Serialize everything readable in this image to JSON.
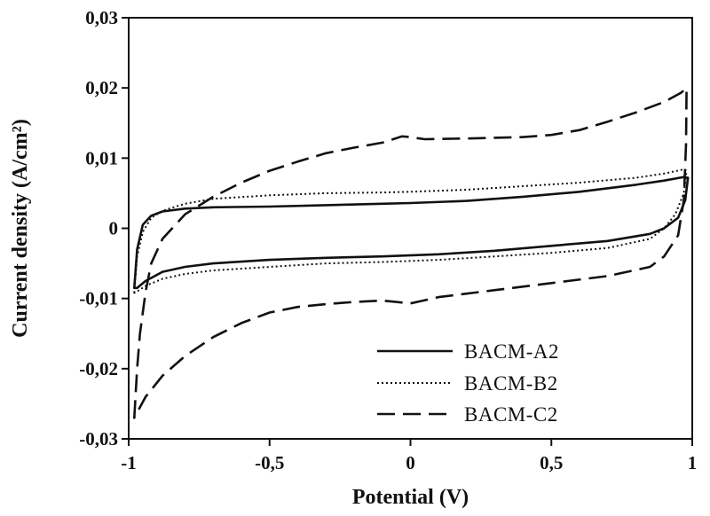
{
  "chart_data": {
    "type": "line",
    "title": "",
    "xlabel": "Potential (V)",
    "ylabel": "Current density (A/cm²)",
    "xlim": [
      -1,
      1
    ],
    "ylim": [
      -0.03,
      0.03
    ],
    "x_ticks": [
      -1,
      -0.5,
      0,
      0.5,
      1
    ],
    "x_tick_labels": [
      "-1",
      "-0,5",
      "0",
      "0,5",
      "1"
    ],
    "y_ticks": [
      -0.03,
      -0.02,
      -0.01,
      0,
      0.01,
      0.02,
      0.03
    ],
    "y_tick_labels": [
      "-0,03",
      "-0,02",
      "-0,01",
      "0",
      "0,01",
      "0,02",
      "0,03"
    ],
    "grid": false,
    "legend_position": "bottom-right",
    "series": [
      {
        "name": "BACM-A2",
        "style": "solid",
        "color": "#111111",
        "points": [
          [
            -0.98,
            -0.0085
          ],
          [
            -0.97,
            -0.003
          ],
          [
            -0.95,
            0.0005
          ],
          [
            -0.92,
            0.0018
          ],
          [
            -0.88,
            0.0024
          ],
          [
            -0.8,
            0.0028
          ],
          [
            -0.7,
            0.003
          ],
          [
            -0.5,
            0.0031
          ],
          [
            -0.3,
            0.0033
          ],
          [
            -0.1,
            0.0035
          ],
          [
            0.0,
            0.0036
          ],
          [
            0.2,
            0.0039
          ],
          [
            0.4,
            0.0045
          ],
          [
            0.6,
            0.0052
          ],
          [
            0.8,
            0.0062
          ],
          [
            0.9,
            0.0068
          ],
          [
            0.97,
            0.0073
          ],
          [
            0.985,
            0.0072
          ],
          [
            0.975,
            0.004
          ],
          [
            0.95,
            0.0015
          ],
          [
            0.9,
            0.0
          ],
          [
            0.85,
            -0.0008
          ],
          [
            0.7,
            -0.0018
          ],
          [
            0.5,
            -0.0025
          ],
          [
            0.3,
            -0.0032
          ],
          [
            0.1,
            -0.0037
          ],
          [
            -0.1,
            -0.004
          ],
          [
            -0.3,
            -0.0042
          ],
          [
            -0.5,
            -0.0045
          ],
          [
            -0.7,
            -0.005
          ],
          [
            -0.8,
            -0.0055
          ],
          [
            -0.88,
            -0.0062
          ],
          [
            -0.94,
            -0.0075
          ],
          [
            -0.97,
            -0.0085
          ],
          [
            -0.98,
            -0.0085
          ]
        ]
      },
      {
        "name": "BACM-B2",
        "style": "dotted",
        "color": "#111111",
        "points": [
          [
            -0.98,
            -0.0092
          ],
          [
            -0.97,
            -0.004
          ],
          [
            -0.95,
            -0.0005
          ],
          [
            -0.92,
            0.0015
          ],
          [
            -0.88,
            0.0025
          ],
          [
            -0.8,
            0.0035
          ],
          [
            -0.7,
            0.0042
          ],
          [
            -0.5,
            0.0047
          ],
          [
            -0.3,
            0.005
          ],
          [
            -0.1,
            0.0051
          ],
          [
            0.0,
            0.0052
          ],
          [
            0.2,
            0.0055
          ],
          [
            0.4,
            0.006
          ],
          [
            0.6,
            0.0065
          ],
          [
            0.8,
            0.0072
          ],
          [
            0.9,
            0.0078
          ],
          [
            0.97,
            0.0084
          ],
          [
            0.98,
            0.0082
          ],
          [
            0.97,
            0.005
          ],
          [
            0.94,
            0.002
          ],
          [
            0.9,
            0.0
          ],
          [
            0.85,
            -0.0015
          ],
          [
            0.7,
            -0.0028
          ],
          [
            0.5,
            -0.0035
          ],
          [
            0.3,
            -0.004
          ],
          [
            0.1,
            -0.0045
          ],
          [
            -0.1,
            -0.0048
          ],
          [
            -0.3,
            -0.005
          ],
          [
            -0.5,
            -0.0055
          ],
          [
            -0.7,
            -0.006
          ],
          [
            -0.8,
            -0.0065
          ],
          [
            -0.88,
            -0.0072
          ],
          [
            -0.94,
            -0.0082
          ],
          [
            -0.97,
            -0.009
          ],
          [
            -0.98,
            -0.0092
          ]
        ]
      },
      {
        "name": "BACM-C2",
        "style": "dashed",
        "color": "#111111",
        "points": [
          [
            -0.98,
            -0.027
          ],
          [
            -0.97,
            -0.02
          ],
          [
            -0.96,
            -0.015
          ],
          [
            -0.94,
            -0.009
          ],
          [
            -0.92,
            -0.005
          ],
          [
            -0.88,
            -0.0015
          ],
          [
            -0.8,
            0.002
          ],
          [
            -0.7,
            0.0045
          ],
          [
            -0.6,
            0.0065
          ],
          [
            -0.5,
            0.0082
          ],
          [
            -0.4,
            0.0095
          ],
          [
            -0.3,
            0.0107
          ],
          [
            -0.2,
            0.0115
          ],
          [
            -0.1,
            0.0122
          ],
          [
            -0.03,
            0.0131
          ],
          [
            0.0,
            0.013
          ],
          [
            0.05,
            0.0127
          ],
          [
            0.2,
            0.0128
          ],
          [
            0.4,
            0.013
          ],
          [
            0.5,
            0.0133
          ],
          [
            0.6,
            0.014
          ],
          [
            0.7,
            0.0152
          ],
          [
            0.8,
            0.0165
          ],
          [
            0.9,
            0.018
          ],
          [
            0.96,
            0.0193
          ],
          [
            0.98,
            0.02
          ],
          [
            0.978,
            0.012
          ],
          [
            0.97,
            0.004
          ],
          [
            0.95,
            -0.001
          ],
          [
            0.9,
            -0.004
          ],
          [
            0.85,
            -0.0055
          ],
          [
            0.7,
            -0.0068
          ],
          [
            0.5,
            -0.0078
          ],
          [
            0.3,
            -0.0088
          ],
          [
            0.1,
            -0.0098
          ],
          [
            0.0,
            -0.0107
          ],
          [
            -0.05,
            -0.0105
          ],
          [
            -0.1,
            -0.0103
          ],
          [
            -0.2,
            -0.0105
          ],
          [
            -0.3,
            -0.0108
          ],
          [
            -0.4,
            -0.0112
          ],
          [
            -0.5,
            -0.012
          ],
          [
            -0.6,
            -0.0135
          ],
          [
            -0.7,
            -0.0155
          ],
          [
            -0.8,
            -0.0182
          ],
          [
            -0.88,
            -0.021
          ],
          [
            -0.94,
            -0.024
          ],
          [
            -0.98,
            -0.027
          ]
        ]
      }
    ]
  }
}
